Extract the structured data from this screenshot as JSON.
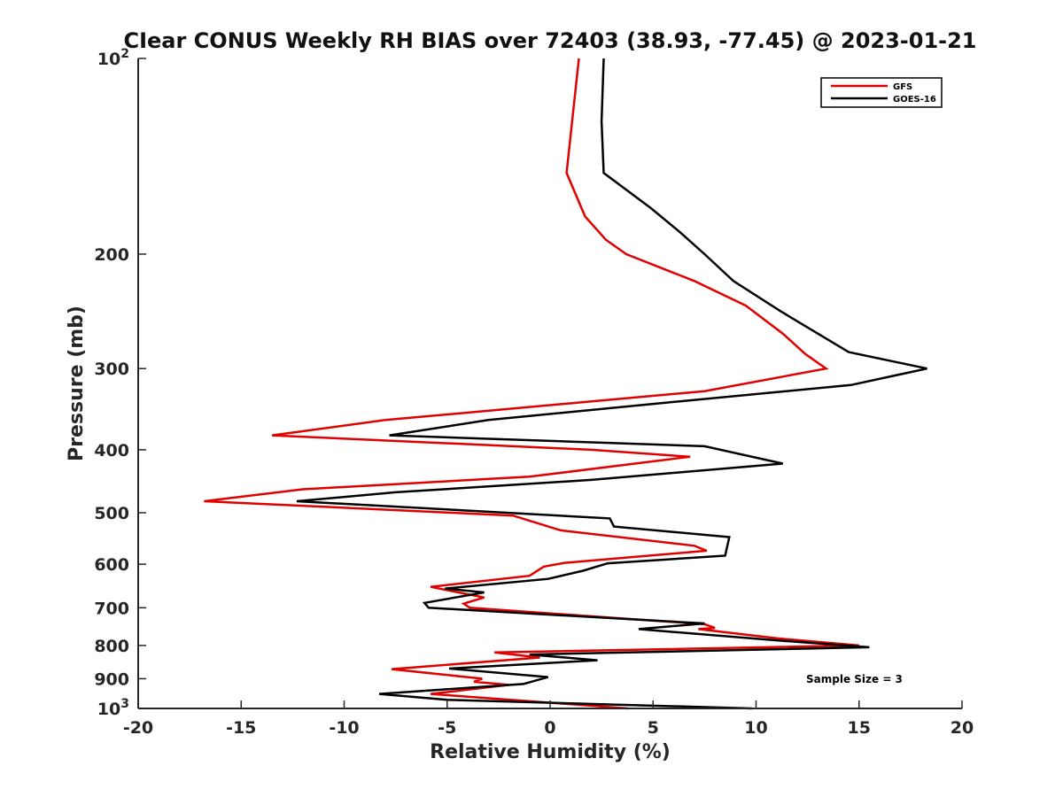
{
  "chart_data": {
    "type": "line",
    "title": "CIear CONUS Weekly RH BIAS over 72403 (38.93, -77.45) @ 2023-01-21",
    "xlabel": "Relative Humidity (%)",
    "ylabel": "Pressure (mb)",
    "xlim": [
      -20,
      20
    ],
    "ylim": [
      100,
      1000
    ],
    "y_scale": "log",
    "y_reversed": true,
    "x_ticks": [
      -20,
      -15,
      -10,
      -5,
      0,
      5,
      10,
      15,
      20
    ],
    "x_tick_labels": [
      "-20",
      "-15",
      "-10",
      "-5",
      "0",
      "5",
      "10",
      "15",
      "20"
    ],
    "y_ticks": [
      100,
      200,
      300,
      400,
      500,
      600,
      700,
      800,
      900,
      1000
    ],
    "y_tick_labels": [
      {
        "base": "10",
        "exp": "2"
      },
      {
        "base": "200",
        "exp": ""
      },
      {
        "base": "300",
        "exp": ""
      },
      {
        "base": "400",
        "exp": ""
      },
      {
        "base": "500",
        "exp": ""
      },
      {
        "base": "600",
        "exp": ""
      },
      {
        "base": "700",
        "exp": ""
      },
      {
        "base": "800",
        "exp": ""
      },
      {
        "base": "900",
        "exp": ""
      },
      {
        "base": "10",
        "exp": "3"
      }
    ],
    "grid": false,
    "legend_position": "top-right",
    "annotation": "Sample Size = 3",
    "series": [
      {
        "name": "GFS",
        "color": "#e00000",
        "points": [
          [
            1.4,
            100
          ],
          [
            0.8,
            150
          ],
          [
            1.7,
            175
          ],
          [
            2.7,
            190
          ],
          [
            3.7,
            200
          ],
          [
            7.0,
            220
          ],
          [
            9.5,
            240
          ],
          [
            11.3,
            265
          ],
          [
            12.4,
            285
          ],
          [
            13.4,
            300
          ],
          [
            7.5,
            325
          ],
          [
            -8.0,
            360
          ],
          [
            -13.5,
            380
          ],
          [
            2.0,
            400
          ],
          [
            6.8,
            410
          ],
          [
            -1.0,
            440
          ],
          [
            -12.0,
            460
          ],
          [
            -16.8,
            480
          ],
          [
            -1.8,
            505
          ],
          [
            0.5,
            532
          ],
          [
            7.0,
            562
          ],
          [
            7.6,
            572
          ],
          [
            2.9,
            589
          ],
          [
            0.7,
            597
          ],
          [
            -0.3,
            605
          ],
          [
            -1.0,
            625
          ],
          [
            -5.8,
            650
          ],
          [
            -3.2,
            675
          ],
          [
            -4.2,
            690
          ],
          [
            -3.9,
            700
          ],
          [
            7.5,
            742
          ],
          [
            8.0,
            752
          ],
          [
            7.2,
            755
          ],
          [
            11.0,
            780
          ],
          [
            15.0,
            800
          ],
          [
            -2.7,
            820
          ],
          [
            -0.5,
            835
          ],
          [
            -7.7,
            870
          ],
          [
            -3.3,
            900
          ],
          [
            -3.7,
            910
          ],
          [
            -2.0,
            920
          ],
          [
            -5.8,
            950
          ],
          [
            3.8,
            1000
          ]
        ]
      },
      {
        "name": "GOES-16",
        "color": "#000000",
        "points": [
          [
            2.6,
            100
          ],
          [
            2.5,
            125
          ],
          [
            2.6,
            150
          ],
          [
            4.9,
            170
          ],
          [
            6.3,
            185
          ],
          [
            7.5,
            200
          ],
          [
            8.9,
            220
          ],
          [
            11.2,
            245
          ],
          [
            14.5,
            283
          ],
          [
            18.3,
            300
          ],
          [
            14.6,
            318
          ],
          [
            5.0,
            340
          ],
          [
            -3.0,
            360
          ],
          [
            -7.8,
            380
          ],
          [
            7.5,
            395
          ],
          [
            11.3,
            420
          ],
          [
            2.0,
            445
          ],
          [
            -7.5,
            465
          ],
          [
            -12.3,
            480
          ],
          [
            2.9,
            510
          ],
          [
            3.1,
            525
          ],
          [
            8.7,
            545
          ],
          [
            8.5,
            582
          ],
          [
            2.8,
            598
          ],
          [
            1.6,
            614
          ],
          [
            -0.1,
            632
          ],
          [
            -5.1,
            654
          ],
          [
            -3.2,
            663
          ],
          [
            -6.1,
            688
          ],
          [
            -5.9,
            700
          ],
          [
            7.5,
            740
          ],
          [
            4.3,
            755
          ],
          [
            10.8,
            785
          ],
          [
            15.5,
            805
          ],
          [
            -1.0,
            826
          ],
          [
            2.3,
            843
          ],
          [
            -4.9,
            868
          ],
          [
            -0.1,
            895
          ],
          [
            -1.3,
            917
          ],
          [
            -8.3,
            950
          ],
          [
            -5.0,
            970
          ],
          [
            9.8,
            1000
          ]
        ]
      }
    ]
  }
}
